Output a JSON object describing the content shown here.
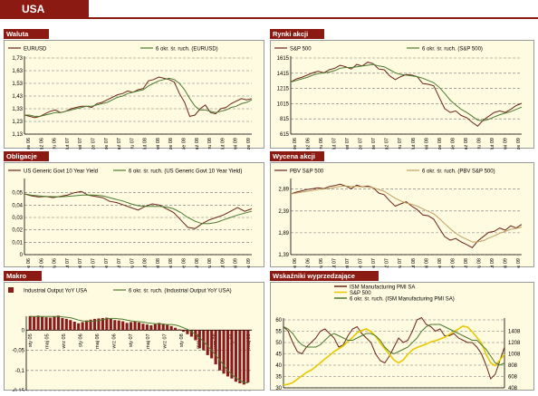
{
  "page": {
    "title": "USA"
  },
  "colors": {
    "brand": "#8b1a12",
    "panel_bg": "#fffbe0",
    "series_main": "#6b2418",
    "series_ma": "#4c7a2e",
    "series_pbv_ma": "#c0a060",
    "series_sp_overlay": "#e8c800",
    "bar": "#8b1a1a",
    "grid": "#777777"
  },
  "chart_data": [
    {
      "id": "waluta",
      "panel_title": "Waluta",
      "type": "line",
      "title": "",
      "ylim": [
        1.13,
        1.73
      ],
      "yticks": [
        1.73,
        1.63,
        1.53,
        1.43,
        1.33,
        1.23,
        1.13
      ],
      "ytick_labels": [
        "1,73",
        "1,63",
        "1,53",
        "1,43",
        "1,33",
        "1,23",
        "1,13"
      ],
      "xtick_labels": [
        "sie 06",
        "paź 06",
        "gru 06",
        "lut 07",
        "kwi 07",
        "cze 07",
        "sie 07",
        "paź 07",
        "gru 07",
        "lut 08",
        "kwi 08",
        "cze 08",
        "sie 08",
        "paź 08",
        "gru 08",
        "lut 09",
        "kwi 09",
        "cze 09"
      ],
      "series": [
        {
          "name": "EURUSD",
          "values": [
            1.28,
            1.27,
            1.26,
            1.27,
            1.29,
            1.31,
            1.32,
            1.3,
            1.31,
            1.33,
            1.34,
            1.35,
            1.35,
            1.34,
            1.37,
            1.38,
            1.4,
            1.42,
            1.44,
            1.45,
            1.47,
            1.46,
            1.48,
            1.49,
            1.55,
            1.56,
            1.58,
            1.57,
            1.56,
            1.54,
            1.45,
            1.38,
            1.27,
            1.28,
            1.33,
            1.36,
            1.3,
            1.29,
            1.33,
            1.34,
            1.37,
            1.39,
            1.41,
            1.4,
            1.41
          ]
        },
        {
          "name": "6 okr. śr. ruch. (EURUSD)",
          "values": [
            1.28,
            1.28,
            1.27,
            1.27,
            1.28,
            1.29,
            1.3,
            1.3,
            1.31,
            1.32,
            1.33,
            1.34,
            1.35,
            1.35,
            1.36,
            1.37,
            1.38,
            1.4,
            1.42,
            1.43,
            1.45,
            1.46,
            1.47,
            1.48,
            1.51,
            1.53,
            1.55,
            1.56,
            1.57,
            1.56,
            1.53,
            1.48,
            1.41,
            1.35,
            1.32,
            1.32,
            1.31,
            1.3,
            1.31,
            1.32,
            1.34,
            1.35,
            1.37,
            1.38,
            1.4
          ]
        }
      ]
    },
    {
      "id": "rynki",
      "panel_title": "Rynki akcji",
      "type": "line",
      "title": "",
      "ylim": [
        615,
        1615
      ],
      "yticks": [
        1615,
        1415,
        1215,
        1015,
        815,
        615
      ],
      "ytick_labels": [
        "1615",
        "1415",
        "1215",
        "1015",
        "815",
        "615"
      ],
      "xtick_labels": [
        "sie 06",
        "paź 06",
        "gru 06",
        "lut 07",
        "kwi 07",
        "cze 07",
        "sie 07",
        "paź 07",
        "gru 07",
        "lut 08",
        "kwi 08",
        "cze 08",
        "sie 08",
        "paź 08",
        "gru 08",
        "lut 09",
        "kwi 09",
        "cze 09"
      ],
      "series": [
        {
          "name": "S&P 500",
          "values": [
            1300,
            1340,
            1360,
            1390,
            1420,
            1440,
            1420,
            1460,
            1480,
            1520,
            1500,
            1470,
            1530,
            1510,
            1560,
            1540,
            1470,
            1460,
            1380,
            1330,
            1370,
            1400,
            1390,
            1370,
            1280,
            1270,
            1250,
            1100,
            950,
            900,
            920,
            860,
            830,
            770,
            720,
            800,
            850,
            900,
            920,
            900,
            940,
            990,
            1020
          ]
        },
        {
          "name": "6 okr. śr. ruch. (S&P 500)",
          "values": [
            1300,
            1320,
            1340,
            1360,
            1390,
            1410,
            1420,
            1430,
            1450,
            1480,
            1490,
            1490,
            1500,
            1510,
            1520,
            1530,
            1510,
            1500,
            1460,
            1420,
            1400,
            1390,
            1380,
            1370,
            1350,
            1320,
            1290,
            1230,
            1150,
            1060,
            1000,
            940,
            900,
            850,
            800,
            790,
            810,
            840,
            870,
            890,
            910,
            940,
            970
          ]
        }
      ]
    },
    {
      "id": "obligacje",
      "panel_title": "Obligacje",
      "type": "line",
      "title": "",
      "ylim": [
        0,
        0.06
      ],
      "yticks": [
        0.05,
        0.04,
        0.03,
        0.02,
        0.01,
        0
      ],
      "ytick_labels": [
        "0,05",
        "0,04",
        "0,03",
        "0,02",
        "0,01",
        "0"
      ],
      "xtick_labels": [
        "sie 06",
        "paź 06",
        "gru 06",
        "lut 07",
        "kwi 07",
        "cze 07",
        "sie 07",
        "paź 07",
        "gru 07",
        "lut 08",
        "kwi 08",
        "cze 08",
        "sie 08",
        "paź 08",
        "gru 08",
        "lut 09",
        "kwi 09",
        "cze 09"
      ],
      "series": [
        {
          "name": "US Generic Govt 10 Year Yield",
          "values": [
            0.049,
            0.0475,
            0.0465,
            0.047,
            0.046,
            0.047,
            0.048,
            0.05,
            0.051,
            0.048,
            0.047,
            0.046,
            0.043,
            0.042,
            0.04,
            0.038,
            0.036,
            0.039,
            0.041,
            0.04,
            0.037,
            0.034,
            0.028,
            0.022,
            0.021,
            0.025,
            0.028,
            0.03,
            0.032,
            0.035,
            0.038,
            0.035,
            0.037
          ]
        },
        {
          "name": "6 okr. śr. ruch. (US Generic Govt 10 Year Yield)",
          "values": [
            0.049,
            0.048,
            0.0475,
            0.047,
            0.0468,
            0.0467,
            0.047,
            0.0475,
            0.048,
            0.0482,
            0.048,
            0.0475,
            0.046,
            0.0445,
            0.043,
            0.041,
            0.0395,
            0.039,
            0.039,
            0.039,
            0.0385,
            0.037,
            0.034,
            0.03,
            0.027,
            0.025,
            0.025,
            0.026,
            0.028,
            0.03,
            0.032,
            0.0335,
            0.035
          ]
        }
      ]
    },
    {
      "id": "wycena",
      "panel_title": "Wycena akcji",
      "type": "line",
      "title": "",
      "ylim": [
        1.39,
        3.09
      ],
      "yticks": [
        2.89,
        2.39,
        1.89,
        1.39
      ],
      "ytick_labels": [
        "2,89",
        "2,39",
        "1,89",
        "1,39"
      ],
      "xtick_labels": [
        "sie 06",
        "paź 06",
        "gru 06",
        "lut 07",
        "kwi 07",
        "cze 07",
        "sie 07",
        "paź 07",
        "gru 07",
        "lut 08",
        "kwi 08",
        "cze 08",
        "sie 08",
        "paź 08",
        "gru 08",
        "lut 09",
        "kwi 09",
        "cze 09"
      ],
      "series": [
        {
          "name": "PBV S&P 500",
          "values": [
            2.78,
            2.82,
            2.85,
            2.88,
            2.9,
            2.92,
            2.9,
            2.95,
            2.97,
            3.0,
            2.96,
            2.9,
            2.98,
            2.94,
            2.96,
            2.92,
            2.8,
            2.76,
            2.62,
            2.5,
            2.55,
            2.6,
            2.5,
            2.42,
            2.3,
            2.28,
            2.2,
            2.0,
            1.8,
            1.72,
            1.76,
            1.68,
            1.62,
            1.55,
            1.7,
            1.8,
            1.9,
            1.92,
            2.0,
            1.95,
            2.05,
            2.0,
            2.08
          ]
        },
        {
          "name": "6 okr. śr. ruch. (PBV S&P 500)",
          "values": [
            2.78,
            2.8,
            2.82,
            2.84,
            2.86,
            2.88,
            2.89,
            2.91,
            2.93,
            2.95,
            2.96,
            2.95,
            2.95,
            2.94,
            2.94,
            2.92,
            2.88,
            2.84,
            2.76,
            2.68,
            2.62,
            2.57,
            2.54,
            2.5,
            2.44,
            2.38,
            2.32,
            2.22,
            2.1,
            1.98,
            1.88,
            1.8,
            1.74,
            1.68,
            1.68,
            1.71,
            1.77,
            1.82,
            1.88,
            1.92,
            1.97,
            1.99,
            2.02
          ]
        }
      ]
    },
    {
      "id": "makro",
      "panel_title": "Makro",
      "type": "bar",
      "title": "",
      "ylim": [
        -0.15,
        0.03
      ],
      "yticks": [
        0,
        -0.05,
        -0.1,
        -0.15
      ],
      "ytick_labels": [
        "0",
        "-0,05",
        "-0,1",
        "-0,15"
      ],
      "xtick_labels": [
        "sty 05",
        "maj 05",
        "wrz 05",
        "sty 06",
        "maj 06",
        "wrz 06",
        "sty 07",
        "maj 07",
        "wrz 07",
        "sty 08",
        "maj 08",
        "wrz 08",
        "sty 09",
        "maj 09"
      ],
      "series": [
        {
          "name": "Industrial Output YoY USA",
          "values": [
            0.035,
            0.034,
            0.036,
            0.033,
            0.032,
            0.031,
            0.034,
            0.036,
            0.03,
            0.028,
            0.025,
            0.021,
            0.017,
            0.02,
            0.024,
            0.026,
            0.028,
            0.029,
            0.03,
            0.031,
            0.028,
            0.025,
            0.024,
            0.022,
            0.018,
            0.02,
            0.022,
            0.019,
            0.016,
            0.014,
            0.012,
            0.015,
            0.018,
            0.016,
            0.013,
            0.01,
            0.006,
            0.002,
            -0.004,
            -0.01,
            -0.016,
            -0.025,
            -0.045,
            -0.05,
            -0.062,
            -0.07,
            -0.085,
            -0.1,
            -0.108,
            -0.115,
            -0.12,
            -0.128,
            -0.132,
            -0.135,
            -0.13
          ]
        },
        {
          "name": "6 okr. śr. ruch. (Industrial Output YoY USA)",
          "values": [
            0.034,
            0.034,
            0.034,
            0.034,
            0.034,
            0.034,
            0.034,
            0.034,
            0.033,
            0.032,
            0.031,
            0.028,
            0.025,
            0.023,
            0.022,
            0.022,
            0.023,
            0.024,
            0.026,
            0.028,
            0.029,
            0.029,
            0.028,
            0.027,
            0.025,
            0.023,
            0.022,
            0.021,
            0.02,
            0.018,
            0.017,
            0.016,
            0.016,
            0.015,
            0.014,
            0.014,
            0.013,
            0.01,
            0.006,
            0.002,
            -0.004,
            -0.01,
            -0.019,
            -0.028,
            -0.039,
            -0.05,
            -0.062,
            -0.074,
            -0.087,
            -0.1,
            -0.11,
            -0.118,
            -0.125,
            -0.13,
            -0.131
          ]
        }
      ]
    },
    {
      "id": "wskazniki",
      "panel_title": "Wskaźniki wyprzedzające",
      "type": "line",
      "title": "",
      "ylim": [
        30,
        60
      ],
      "yticks": [
        60,
        55,
        50,
        45,
        40,
        35,
        30
      ],
      "ytick_labels": [
        "60",
        "55",
        "50",
        "45",
        "40",
        "35",
        "30"
      ],
      "y2lim": [
        408,
        1608
      ],
      "y2ticks": [
        1408,
        1208,
        1008,
        808,
        608,
        408
      ],
      "y2tick_labels": [
        "1408",
        "1208",
        "1008",
        "808",
        "608",
        "408"
      ],
      "xtick_labels": [
        "sie 94",
        "sie 95",
        "sie 96",
        "sie 97",
        "sie 98",
        "sie 99",
        "sie 00",
        "sie 01",
        "sie 02",
        "sie 03",
        "sie 04",
        "sie 05",
        "sie 06",
        "sie 07",
        "sie 08"
      ],
      "series": [
        {
          "name": "ISM Manufacturing PMI SA",
          "axis": "left",
          "values": [
            57,
            55,
            50,
            46,
            45,
            48,
            50,
            52,
            55,
            56,
            54,
            52,
            48,
            49,
            53,
            56,
            57,
            54,
            52,
            50,
            45,
            42,
            41,
            44,
            48,
            52,
            50,
            51,
            55,
            60,
            61,
            58,
            57,
            55,
            56,
            53,
            53,
            54,
            52,
            51,
            50,
            50,
            48,
            45,
            40,
            34,
            36,
            42,
            48
          ]
        },
        {
          "name": "S&P 500",
          "axis": "right",
          "values": [
            460,
            470,
            500,
            560,
            620,
            680,
            720,
            780,
            850,
            920,
            980,
            1050,
            1100,
            1150,
            1230,
            1300,
            1380,
            1420,
            1450,
            1400,
            1320,
            1200,
            1100,
            1000,
            900,
            850,
            900,
            1000,
            1080,
            1120,
            1150,
            1180,
            1220,
            1240,
            1270,
            1300,
            1350,
            1400,
            1450,
            1500,
            1480,
            1400,
            1300,
            1200,
            1000,
            850,
            800,
            900,
            1000
          ]
        },
        {
          "name": "6 okr. śr. ruch. (ISM Manufacturing PMI SA)",
          "axis": "left",
          "values": [
            57,
            56,
            54,
            51,
            49,
            48,
            48,
            48,
            49,
            51,
            53,
            54,
            53,
            52,
            51,
            51,
            52,
            53,
            54,
            54,
            53,
            51,
            48,
            46,
            45,
            46,
            47,
            48,
            50,
            52,
            55,
            57,
            58,
            58,
            58,
            57,
            56,
            55,
            54,
            53,
            52,
            51,
            51,
            49,
            47,
            44,
            41,
            40,
            41
          ]
        }
      ]
    }
  ]
}
